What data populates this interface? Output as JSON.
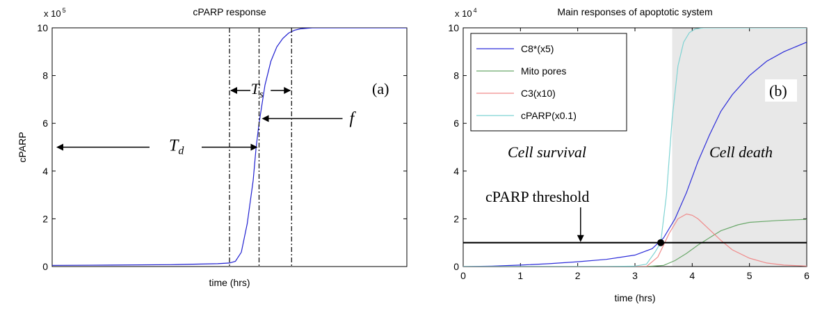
{
  "chart_data": [
    {
      "panel": "a",
      "type": "line",
      "title": "cPARP response",
      "xlabel": "time (hrs)",
      "ylabel": "cPARP",
      "y_multiplier": "x 10",
      "y_exponent": "5",
      "ylim": [
        0,
        10
      ],
      "yticks": [
        "0",
        "2",
        "4",
        "6",
        "8",
        "10"
      ],
      "xlim": [
        0,
        6
      ],
      "xtick_labels_shown": false,
      "grid": false,
      "legend": "none",
      "panel_label": "(a)",
      "series": [
        {
          "color": "#1f1fd0",
          "x": [
            0,
            1,
            2,
            2.8,
            3.0,
            3.1,
            3.2,
            3.3,
            3.4,
            3.45,
            3.5,
            3.6,
            3.7,
            3.8,
            3.9,
            4.0,
            4.1,
            4.2,
            4.4,
            4.6,
            5,
            6
          ],
          "y": [
            0.05,
            0.06,
            0.08,
            0.12,
            0.15,
            0.22,
            0.6,
            1.8,
            3.6,
            5.0,
            6.0,
            7.6,
            8.6,
            9.2,
            9.55,
            9.78,
            9.9,
            9.96,
            10.0,
            10.0,
            10.0,
            10.0
          ]
        }
      ],
      "annotations": {
        "dashdot_lines_x": [
          3.0,
          3.5,
          4.05
        ],
        "ts": {
          "main": "T",
          "sub": "s"
        },
        "td": {
          "main": "T",
          "sub": "d"
        },
        "f": "f"
      }
    },
    {
      "panel": "b",
      "type": "line",
      "title": "Main responses of apoptotic system",
      "xlabel": "time (hrs)",
      "ylabel": "",
      "y_multiplier": "x 10",
      "y_exponent": "4",
      "xlim": [
        0,
        6
      ],
      "ylim": [
        0,
        10
      ],
      "xticks": [
        "0",
        "1",
        "2",
        "3",
        "4",
        "5",
        "6"
      ],
      "yticks": [
        "0",
        "2",
        "4",
        "6",
        "8",
        "10"
      ],
      "grid": false,
      "legend": "top-left",
      "panel_label": "(b)",
      "shaded_region": {
        "x_from": 3.65,
        "x_to": 6,
        "color": "#e8e8e8"
      },
      "threshold": {
        "y": 1,
        "label": "cPARP threshold",
        "crossing_x": 3.45,
        "crossing_y": 1
      },
      "region_labels": {
        "left": "Cell survival",
        "right": "Cell death"
      },
      "series": [
        {
          "name": "C8*(x5)",
          "color": "#2b2bd9",
          "x": [
            0,
            0.5,
            1,
            1.5,
            2,
            2.5,
            3,
            3.3,
            3.5,
            3.7,
            3.9,
            4.1,
            4.3,
            4.5,
            4.7,
            5,
            5.3,
            5.6,
            6
          ],
          "y": [
            0,
            0.02,
            0.06,
            0.12,
            0.2,
            0.3,
            0.48,
            0.75,
            1.2,
            2.0,
            3.1,
            4.4,
            5.5,
            6.5,
            7.2,
            8.0,
            8.6,
            9.0,
            9.4
          ]
        },
        {
          "name": "Mito pores",
          "color": "#6aa86a",
          "x": [
            0,
            3.2,
            3.5,
            3.7,
            3.9,
            4.1,
            4.3,
            4.5,
            4.8,
            5,
            5.5,
            6
          ],
          "y": [
            0,
            0,
            0.05,
            0.25,
            0.55,
            0.9,
            1.2,
            1.5,
            1.75,
            1.85,
            1.93,
            1.98
          ]
        },
        {
          "name": "C3(x10)",
          "color": "#f08a8a",
          "x": [
            0,
            3.2,
            3.4,
            3.6,
            3.75,
            3.9,
            4.0,
            4.1,
            4.3,
            4.5,
            4.7,
            5,
            5.3,
            5.6,
            6
          ],
          "y": [
            0,
            0,
            0.4,
            1.4,
            2.0,
            2.2,
            2.15,
            2.0,
            1.55,
            1.1,
            0.7,
            0.35,
            0.15,
            0.06,
            0.02
          ]
        },
        {
          "name": "cPARP(x0.1)",
          "color": "#7fd3d3",
          "x": [
            0,
            2.5,
            3,
            3.2,
            3.35,
            3.45,
            3.55,
            3.65,
            3.75,
            3.85,
            3.95,
            4.05,
            4.2,
            4.5,
            6
          ],
          "y": [
            0,
            0,
            0.02,
            0.1,
            0.6,
            1.0,
            3.0,
            6.2,
            8.4,
            9.4,
            9.8,
            9.95,
            10.0,
            10.0,
            10.0
          ]
        }
      ]
    }
  ]
}
